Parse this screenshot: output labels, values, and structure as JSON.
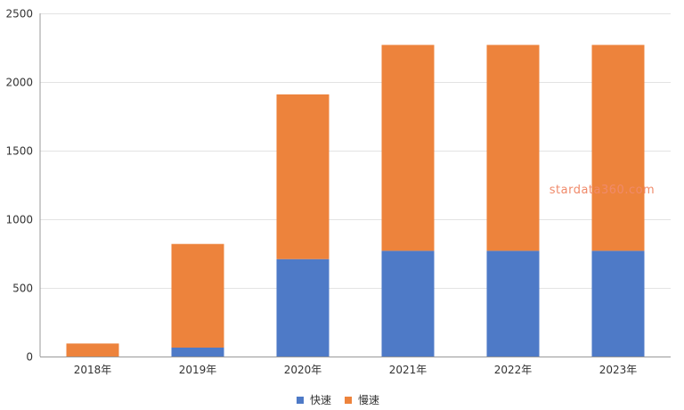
{
  "chart_data": {
    "type": "bar",
    "stacked": true,
    "categories": [
      "2018年",
      "2019年",
      "2020年",
      "2021年",
      "2022年",
      "2023年"
    ],
    "series": [
      {
        "name": "快速",
        "color": "#4e7ac7",
        "values": [
          0,
          65,
          710,
          770,
          770,
          770
        ]
      },
      {
        "name": "慢速",
        "color": "#ed833c",
        "values": [
          95,
          755,
          1200,
          1500,
          1500,
          1500
        ]
      }
    ],
    "ylim": [
      0,
      2500
    ],
    "yticks": [
      0,
      500,
      1000,
      1500,
      2000,
      2500
    ],
    "grid": true,
    "legend": "bottom-center",
    "xlabel": "",
    "ylabel": "",
    "title": ""
  },
  "watermark": "stardata360.com"
}
